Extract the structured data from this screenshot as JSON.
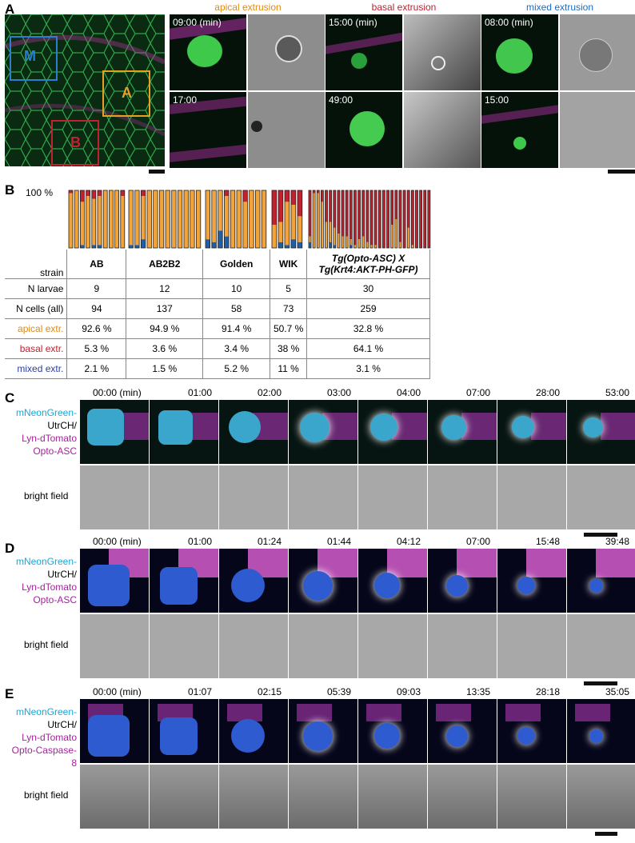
{
  "panels": {
    "a": "A",
    "b": "B",
    "c": "C",
    "d": "D",
    "e": "E"
  },
  "panel_a": {
    "roi_labels": [
      "M",
      "A",
      "B"
    ],
    "headers": [
      "apical extrusion",
      "basal extrusion",
      "mixed extrusion"
    ],
    "timestamps": {
      "apical": [
        "09:00 (min)",
        "17:00"
      ],
      "basal": [
        "15:00 (min)",
        "49:00"
      ],
      "mixed": [
        "08:00 (min)",
        "15:00"
      ]
    }
  },
  "panel_b": {
    "axis_label": "100 %",
    "headers": [
      "strain",
      "AB",
      "AB2B2",
      "Golden",
      "WIK",
      "Tg(Opto-ASC) X Tg(Krt4:AKT-PH-GFP)"
    ],
    "header_line1": "Tg(Opto-ASC) X",
    "header_line2": "Tg(Krt4:AKT-PH-GFP)",
    "rows": [
      {
        "label": "N larvae",
        "values": [
          "9",
          "12",
          "10",
          "5",
          "30"
        ]
      },
      {
        "label": "N cells (all)",
        "values": [
          "94",
          "137",
          "58",
          "73",
          "259"
        ]
      },
      {
        "label": "apical extr.",
        "values": [
          "92.6 %",
          "94.9 %",
          "91.4 %",
          "50.7 %",
          "32.8 %"
        ]
      },
      {
        "label": "basal extr.",
        "values": [
          "5.3 %",
          "3.6 %",
          "3.4 %",
          "38 %",
          "64.1 %"
        ]
      },
      {
        "label": "mixed extr.",
        "values": [
          "2.1 %",
          "1.5 %",
          "5.2 %",
          "11 %",
          "3.1 %"
        ]
      }
    ],
    "colors": {
      "apical": "#f2a33a",
      "basal": "#c0222f",
      "mixed": "#1f5fa8"
    }
  },
  "chart_data": {
    "type": "bar",
    "stacked": true,
    "ylim": [
      0,
      100
    ],
    "groups": [
      {
        "strain": "AB",
        "apical": [
          95,
          100,
          75,
          90,
          80,
          85,
          100,
          100,
          100,
          90
        ],
        "basal": [
          5,
          0,
          20,
          10,
          15,
          10,
          0,
          0,
          0,
          10
        ],
        "mixed": [
          0,
          0,
          5,
          0,
          5,
          5,
          0,
          0,
          0,
          0
        ]
      },
      {
        "strain": "AB2B2",
        "apical": [
          95,
          95,
          75,
          100,
          100,
          100,
          100,
          100,
          100,
          100,
          100,
          100
        ],
        "basal": [
          0,
          0,
          10,
          0,
          0,
          0,
          0,
          0,
          0,
          0,
          0,
          0
        ],
        "mixed": [
          5,
          5,
          15,
          0,
          0,
          0,
          0,
          0,
          0,
          0,
          0,
          0
        ]
      },
      {
        "strain": "Golden",
        "apical": [
          85,
          90,
          70,
          70,
          100,
          100,
          80,
          100,
          100,
          100
        ],
        "basal": [
          0,
          0,
          0,
          10,
          0,
          0,
          20,
          0,
          0,
          0
        ],
        "mixed": [
          15,
          10,
          30,
          20,
          0,
          0,
          0,
          0,
          0,
          0
        ]
      },
      {
        "strain": "WIK",
        "apical": [
          40,
          35,
          75,
          60,
          45
        ],
        "basal": [
          60,
          55,
          20,
          25,
          45
        ],
        "mixed": [
          0,
          10,
          5,
          15,
          10
        ]
      },
      {
        "strain": "Tg(Opto-ASC) X Tg(Krt4:AKT-PH-GFP)",
        "apical": [
          10,
          95,
          95,
          80,
          45,
          35,
          30,
          25,
          20,
          20,
          10,
          5,
          15,
          20,
          10,
          5,
          5,
          0,
          0,
          0,
          40,
          50,
          10,
          0,
          35,
          5,
          0,
          0,
          0,
          0
        ],
        "basal": [
          80,
          5,
          5,
          20,
          55,
          55,
          65,
          75,
          80,
          80,
          85,
          95,
          85,
          80,
          90,
          95,
          95,
          100,
          100,
          100,
          60,
          50,
          90,
          100,
          65,
          95,
          100,
          100,
          100,
          100
        ],
        "mixed": [
          10,
          0,
          0,
          0,
          0,
          10,
          5,
          0,
          0,
          0,
          5,
          0,
          0,
          0,
          0,
          0,
          0,
          0,
          0,
          0,
          0,
          0,
          0,
          0,
          0,
          0,
          0,
          0,
          0,
          0
        ]
      }
    ]
  },
  "panel_c": {
    "times": [
      "00:00 (min)",
      "01:00",
      "02:00",
      "03:00",
      "04:00",
      "07:00",
      "28:00",
      "53:00"
    ],
    "label_lines": [
      "mNeonGreen-",
      "UtrCH/",
      "Lyn-dTomato",
      "Opto-ASC"
    ],
    "bf": "bright field"
  },
  "panel_d": {
    "times": [
      "00:00 (min)",
      "01:00",
      "01:24",
      "01:44",
      "04:12",
      "07:00",
      "15:48",
      "39:48"
    ],
    "label_lines": [
      "mNeonGreen-",
      "UtrCH/",
      "Lyn-dTomato",
      "Opto-ASC"
    ],
    "bf": "bright field"
  },
  "panel_e": {
    "times": [
      "00:00 (min)",
      "01:07",
      "02:15",
      "05:39",
      "09:03",
      "13:35",
      "28:18",
      "35:05"
    ],
    "label_lines": [
      "mNeonGreen-",
      "UtrCH/",
      "Lyn-dTomato",
      "Opto-Caspase-8"
    ],
    "bf": "bright field"
  },
  "label_colors": {
    "green": "#1aa6d6",
    "magenta": "#a3249c",
    "black": "#000000",
    "apical": "#e08a12",
    "basal": "#c0222f",
    "mixed": "#1f6cc0"
  }
}
